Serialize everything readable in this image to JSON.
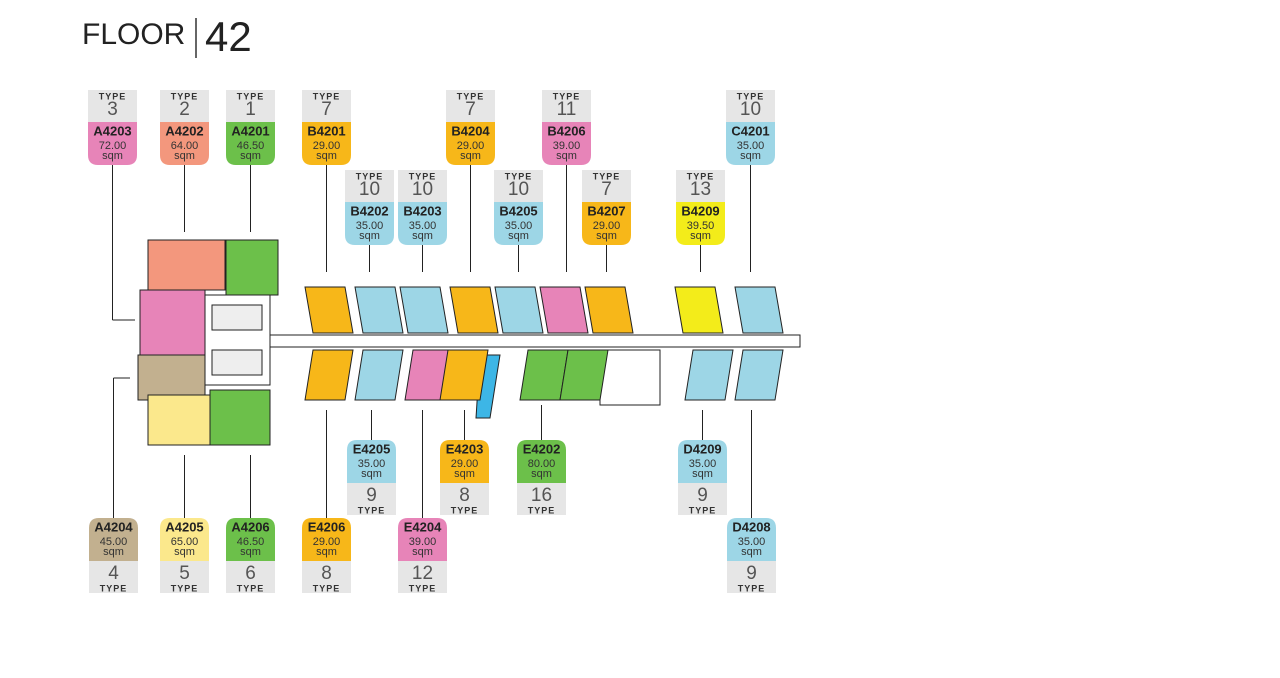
{
  "header": {
    "title": "FLOOR",
    "floor": "42"
  },
  "units": [
    {
      "type_label": "TYPE",
      "type": "3",
      "code": "A4203",
      "area": "72.00",
      "unit": "sqm",
      "color": "#e784b8"
    },
    {
      "type_label": "TYPE",
      "type": "2",
      "code": "A4202",
      "area": "64.00",
      "unit": "sqm",
      "color": "#f3977d"
    },
    {
      "type_label": "TYPE",
      "type": "1",
      "code": "A4201",
      "area": "46.50",
      "unit": "sqm",
      "color": "#6cc04a"
    },
    {
      "type_label": "TYPE",
      "type": "7",
      "code": "B4201",
      "area": "29.00",
      "unit": "sqm",
      "color": "#f7b719"
    },
    {
      "type_label": "TYPE",
      "type": "7",
      "code": "B4204",
      "area": "29.00",
      "unit": "sqm",
      "color": "#f7b719"
    },
    {
      "type_label": "TYPE",
      "type": "11",
      "code": "B4206",
      "area": "39.00",
      "unit": "sqm",
      "color": "#e784b8"
    },
    {
      "type_label": "TYPE",
      "type": "10",
      "code": "C4201",
      "area": "35.00",
      "unit": "sqm",
      "color": "#9dd6e6"
    },
    {
      "type_label": "TYPE",
      "type": "10",
      "code": "B4202",
      "area": "35.00",
      "unit": "sqm",
      "color": "#9dd6e6"
    },
    {
      "type_label": "TYPE",
      "type": "10",
      "code": "B4203",
      "area": "35.00",
      "unit": "sqm",
      "color": "#9dd6e6"
    },
    {
      "type_label": "TYPE",
      "type": "10",
      "code": "B4205",
      "area": "35.00",
      "unit": "sqm",
      "color": "#9dd6e6"
    },
    {
      "type_label": "TYPE",
      "type": "7",
      "code": "B4207",
      "area": "29.00",
      "unit": "sqm",
      "color": "#f7b719"
    },
    {
      "type_label": "TYPE",
      "type": "13",
      "code": "B4209",
      "area": "39.50",
      "unit": "sqm",
      "color": "#f3ec1a"
    },
    {
      "type_label": "TYPE",
      "type": "9",
      "code": "E4205",
      "area": "35.00",
      "unit": "sqm",
      "color": "#9dd6e6"
    },
    {
      "type_label": "TYPE",
      "type": "8",
      "code": "E4203",
      "area": "29.00",
      "unit": "sqm",
      "color": "#f7b719"
    },
    {
      "type_label": "TYPE",
      "type": "16",
      "code": "E4202",
      "area": "80.00",
      "unit": "sqm",
      "color": "#6cc04a"
    },
    {
      "type_label": "TYPE",
      "type": "9",
      "code": "D4209",
      "area": "35.00",
      "unit": "sqm",
      "color": "#9dd6e6"
    },
    {
      "type_label": "TYPE",
      "type": "4",
      "code": "A4204",
      "area": "45.00",
      "unit": "sqm",
      "color": "#c2b08f"
    },
    {
      "type_label": "TYPE",
      "type": "5",
      "code": "A4205",
      "area": "65.00",
      "unit": "sqm",
      "color": "#fbe88c"
    },
    {
      "type_label": "TYPE",
      "type": "6",
      "code": "A4206",
      "area": "46.50",
      "unit": "sqm",
      "color": "#6cc04a"
    },
    {
      "type_label": "TYPE",
      "type": "8",
      "code": "E4206",
      "area": "29.00",
      "unit": "sqm",
      "color": "#f7b719"
    },
    {
      "type_label": "TYPE",
      "type": "12",
      "code": "E4204",
      "area": "39.00",
      "unit": "sqm",
      "color": "#e784b8"
    },
    {
      "type_label": "TYPE",
      "type": "9",
      "code": "D4208",
      "area": "35.00",
      "unit": "sqm",
      "color": "#9dd6e6"
    }
  ]
}
